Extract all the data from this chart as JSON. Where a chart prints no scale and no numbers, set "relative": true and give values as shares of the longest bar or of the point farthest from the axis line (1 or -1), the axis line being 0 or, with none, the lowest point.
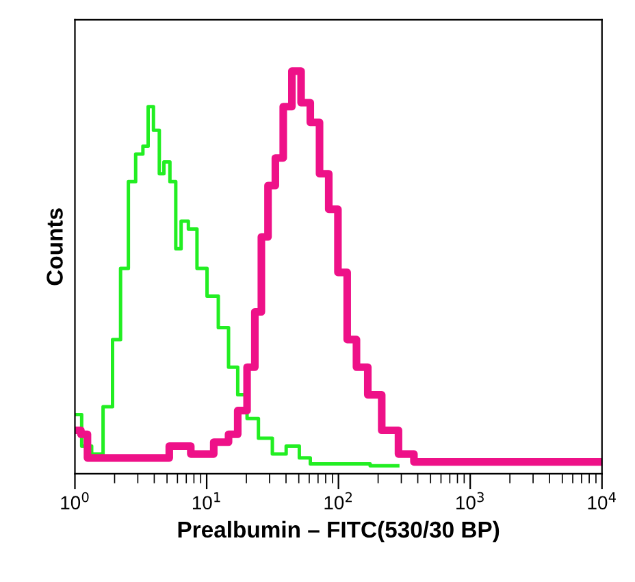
{
  "chart_data": {
    "type": "step",
    "relative": true,
    "xlabel": "Prealbumin – FITC(530/30 BP)",
    "ylabel": "Counts",
    "log": "x",
    "xlim": [
      1,
      10000
    ],
    "xticks": [
      {
        "value": 1,
        "label": "10$^{0}$"
      },
      {
        "value": 10,
        "label": "10$^{1}$"
      },
      {
        "value": 100,
        "label": "10$^{2}$"
      },
      {
        "value": 1000,
        "label": "10$^{3}$"
      },
      {
        "value": 10000,
        "label": "10$^{4}$"
      }
    ],
    "tick_labels": "x",
    "grid": false,
    "legend": false,
    "marker": "none",
    "line_style": "solid",
    "series": [
      {
        "color": "#22ee22",
        "x": [
          1.02,
          1.23,
          1.45,
          1.82,
          2.04,
          2.4,
          2.69,
          3.09,
          3.47,
          3.72,
          4.17,
          4.57,
          4.9,
          5.62,
          6.03,
          6.76,
          7.76,
          9.12,
          11.0,
          13.5,
          15.8,
          18.6,
          21.9,
          27.5,
          35.5,
          44.7,
          56.2,
          66.1,
          282
        ],
        "values": [
          0.13,
          0.05,
          0.03,
          0.15,
          0.32,
          0.5,
          0.72,
          0.79,
          0.81,
          0.91,
          0.85,
          0.74,
          0.77,
          0.72,
          0.55,
          0.62,
          0.6,
          0.5,
          0.43,
          0.35,
          0.25,
          0.18,
          0.12,
          0.07,
          0.03,
          0.05,
          0.02,
          0.005,
          0.0
        ]
      },
      {
        "color": "#ee1188",
        "x": [
          1.05,
          1.17,
          1.32,
          4.37,
          6.03,
          9.12,
          13.5,
          15.8,
          18.6,
          21.9,
          24.5,
          27.5,
          30.9,
          35.5,
          40.7,
          47.9,
          56.2,
          66.1,
          77.6,
          91.2,
          107,
          126,
          148,
          186,
          240,
          331,
          417,
          10000
        ],
        "values": [
          0.09,
          0.08,
          0.02,
          0.02,
          0.05,
          0.03,
          0.06,
          0.08,
          0.14,
          0.25,
          0.39,
          0.58,
          0.71,
          0.78,
          0.91,
          1.0,
          0.92,
          0.87,
          0.74,
          0.65,
          0.49,
          0.32,
          0.25,
          0.18,
          0.09,
          0.03,
          0.01,
          0.01
        ]
      }
    ]
  }
}
